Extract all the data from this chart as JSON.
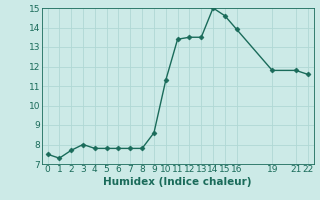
{
  "x": [
    0,
    1,
    2,
    3,
    4,
    5,
    6,
    7,
    8,
    9,
    10,
    11,
    12,
    13,
    14,
    15,
    16,
    19,
    21,
    22
  ],
  "y": [
    7.5,
    7.3,
    7.7,
    8.0,
    7.8,
    7.8,
    7.8,
    7.8,
    7.8,
    8.6,
    11.3,
    13.4,
    13.5,
    13.5,
    15.0,
    14.6,
    13.9,
    11.8,
    11.8,
    11.6
  ],
  "line_color": "#1a6b5a",
  "bg_color": "#cceae7",
  "grid_color": "#b0d8d4",
  "xlabel": "Humidex (Indice chaleur)",
  "xlim": [
    -0.5,
    22.5
  ],
  "ylim": [
    7,
    15
  ],
  "yticks": [
    7,
    8,
    9,
    10,
    11,
    12,
    13,
    14,
    15
  ],
  "xtick_positions": [
    0,
    1,
    2,
    3,
    4,
    5,
    6,
    7,
    8,
    9,
    10,
    11,
    12,
    13,
    14,
    15,
    16,
    19,
    21,
    22
  ],
  "xtick_labels": [
    "0",
    "1",
    "2",
    "3",
    "4",
    "5",
    "6",
    "7",
    "8",
    "9",
    "10",
    "11",
    "12",
    "13",
    "14",
    "15",
    "16",
    "19",
    "21",
    "22"
  ],
  "marker": "D",
  "markersize": 2.5,
  "linewidth": 1.0,
  "tick_fontsize": 6.5,
  "label_fontsize": 7.5
}
